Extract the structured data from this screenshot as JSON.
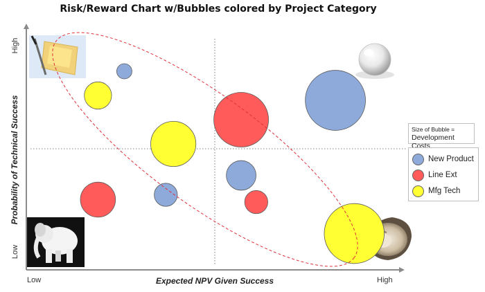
{
  "chart_data": {
    "type": "bubble",
    "title": "Risk/Reward Chart w/Bubbles colored by Project Category",
    "xlabel": "Expected NPV Given Success",
    "ylabel": "Probability of Technical Success",
    "x_ticks": [
      "Low",
      "High"
    ],
    "y_ticks": [
      "Low",
      "High"
    ],
    "xlim": [
      0,
      100
    ],
    "ylim": [
      0,
      100
    ],
    "quadrant_lines": {
      "x": 50,
      "y": 50
    },
    "size_note": {
      "line1": "Size of Bubble =",
      "line2": "Development Costs"
    },
    "categories": [
      {
        "name": "New Product",
        "color": "#8eaadb"
      },
      {
        "name": "Line Ext",
        "color": "#ff5b5b"
      },
      {
        "name": "Mfg Tech",
        "color": "#ffff33"
      }
    ],
    "bubbles": [
      {
        "category": "New Product",
        "x": 26,
        "y": 82,
        "size": 1.0
      },
      {
        "category": "New Product",
        "x": 82,
        "y": 70,
        "size": 15.6
      },
      {
        "category": "New Product",
        "x": 57,
        "y": 39,
        "size": 3.8
      },
      {
        "category": "New Product",
        "x": 37,
        "y": 31,
        "size": 2.3
      },
      {
        "category": "Line Ext",
        "x": 57,
        "y": 62,
        "size": 12.9
      },
      {
        "category": "Line Ext",
        "x": 19,
        "y": 29,
        "size": 5.3
      },
      {
        "category": "Line Ext",
        "x": 61,
        "y": 28,
        "size": 2.3
      },
      {
        "category": "Mfg Tech",
        "x": 19,
        "y": 72,
        "size": 3.2
      },
      {
        "category": "Mfg Tech",
        "x": 39,
        "y": 52,
        "size": 8.8
      },
      {
        "category": "Mfg Tech",
        "x": 87,
        "y": 15,
        "size": 15.5
      }
    ],
    "ellipse": "dashed red ellipse enclosing the diagonal band from high-probability/low-NPV to low-probability/high-NPV",
    "grid": false,
    "legend_position": "right"
  },
  "icons": {
    "top_left": "bread-and-butter-icon",
    "bottom_left": "white-elephant-icon",
    "top_right": "pearl-icon",
    "bottom_right": "oyster-icon"
  }
}
